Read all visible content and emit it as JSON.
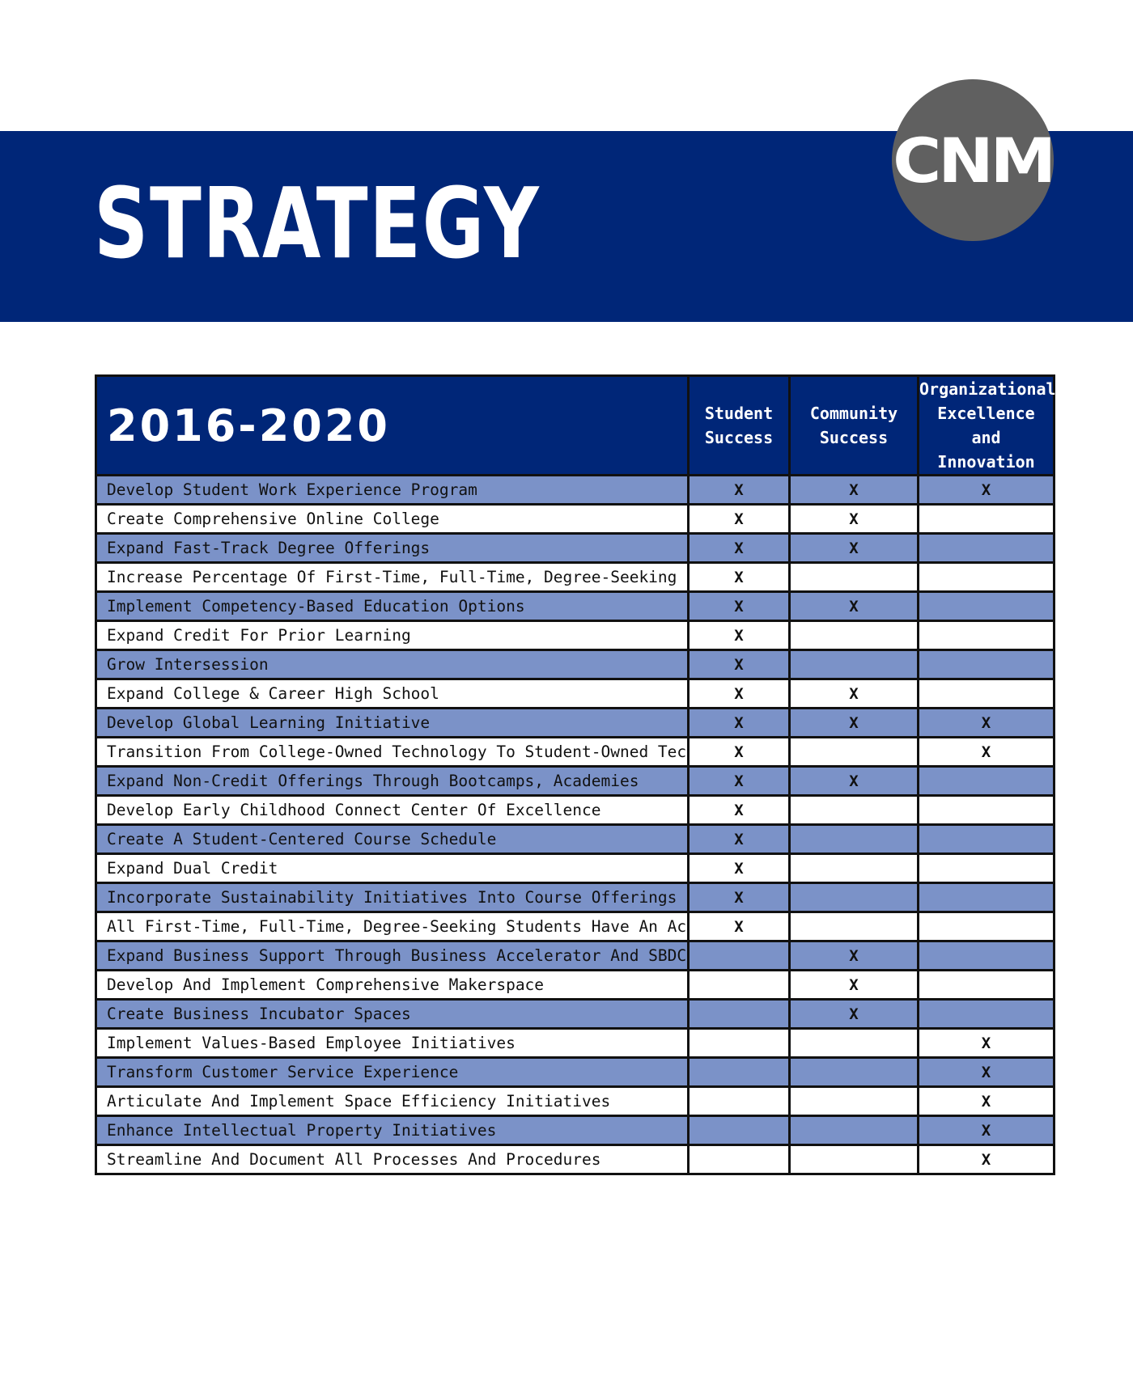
{
  "header": {
    "title": "STRATEGY",
    "logo_text": "CNM"
  },
  "table": {
    "period": "2016-2020",
    "columns": [
      [
        "Student",
        "Success"
      ],
      [
        "Community",
        "Success"
      ],
      [
        "Organizational",
        "Excellence and",
        "Innovation"
      ]
    ],
    "rows": [
      {
        "label": "Develop Student Work Experience Program",
        "marks": [
          "X",
          "X",
          "X"
        ]
      },
      {
        "label": "Create Comprehensive Online College",
        "marks": [
          "X",
          "X",
          ""
        ]
      },
      {
        "label": "Expand Fast-Track Degree Offerings",
        "marks": [
          "X",
          "X",
          ""
        ]
      },
      {
        "label": "Increase Percentage Of First-Time, Full-Time, Degree-Seeking Students",
        "marks": [
          "X",
          "",
          ""
        ]
      },
      {
        "label": "Implement Competency-Based Education Options",
        "marks": [
          "X",
          "X",
          ""
        ]
      },
      {
        "label": "Expand Credit For Prior Learning",
        "marks": [
          "X",
          "",
          ""
        ]
      },
      {
        "label": "Grow Intersession",
        "marks": [
          "X",
          "",
          ""
        ]
      },
      {
        "label": "Expand College & Career High School",
        "marks": [
          "X",
          "X",
          ""
        ]
      },
      {
        "label": "Develop Global Learning Initiative",
        "marks": [
          "X",
          "X",
          "X"
        ]
      },
      {
        "label": "Transition From College-Owned Technology To Student-Owned Technology",
        "marks": [
          "X",
          "",
          "X"
        ]
      },
      {
        "label": "Expand Non-Credit Offerings Through Bootcamps, Academies",
        "marks": [
          "X",
          "X",
          ""
        ]
      },
      {
        "label": "Develop Early Childhood Connect Center Of Excellence",
        "marks": [
          "X",
          "",
          ""
        ]
      },
      {
        "label": "Create A Student-Centered Course Schedule",
        "marks": [
          "X",
          "",
          ""
        ]
      },
      {
        "label": "Expand Dual Credit",
        "marks": [
          "X",
          "",
          ""
        ]
      },
      {
        "label": "Incorporate Sustainability Initiatives Into Course Offerings",
        "marks": [
          "X",
          "",
          ""
        ]
      },
      {
        "label": "All First-Time, Full-Time, Degree-Seeking Students Have An Academic Plan",
        "marks": [
          "X",
          "",
          ""
        ]
      },
      {
        "label": "Expand Business Support Through Business Accelerator And SBDCs",
        "marks": [
          "",
          "X",
          ""
        ]
      },
      {
        "label": "Develop And Implement Comprehensive Makerspace",
        "marks": [
          "",
          "X",
          ""
        ]
      },
      {
        "label": "Create Business Incubator Spaces",
        "marks": [
          "",
          "X",
          ""
        ]
      },
      {
        "label": "Implement Values-Based Employee Initiatives",
        "marks": [
          "",
          "",
          "X"
        ]
      },
      {
        "label": "Transform Customer Service Experience",
        "marks": [
          "",
          "",
          "X"
        ]
      },
      {
        "label": "Articulate And Implement Space Efficiency Initiatives",
        "marks": [
          "",
          "",
          "X"
        ]
      },
      {
        "label": "Enhance Intellectual Property Initiatives",
        "marks": [
          "",
          "",
          "X"
        ]
      },
      {
        "label": "Streamline And Document All Processes And Procedures",
        "marks": [
          "",
          "",
          "X"
        ]
      }
    ]
  },
  "colors": {
    "banner": "#002678",
    "shaded_row": "#7b92c8",
    "logo_circle": "#606060"
  }
}
